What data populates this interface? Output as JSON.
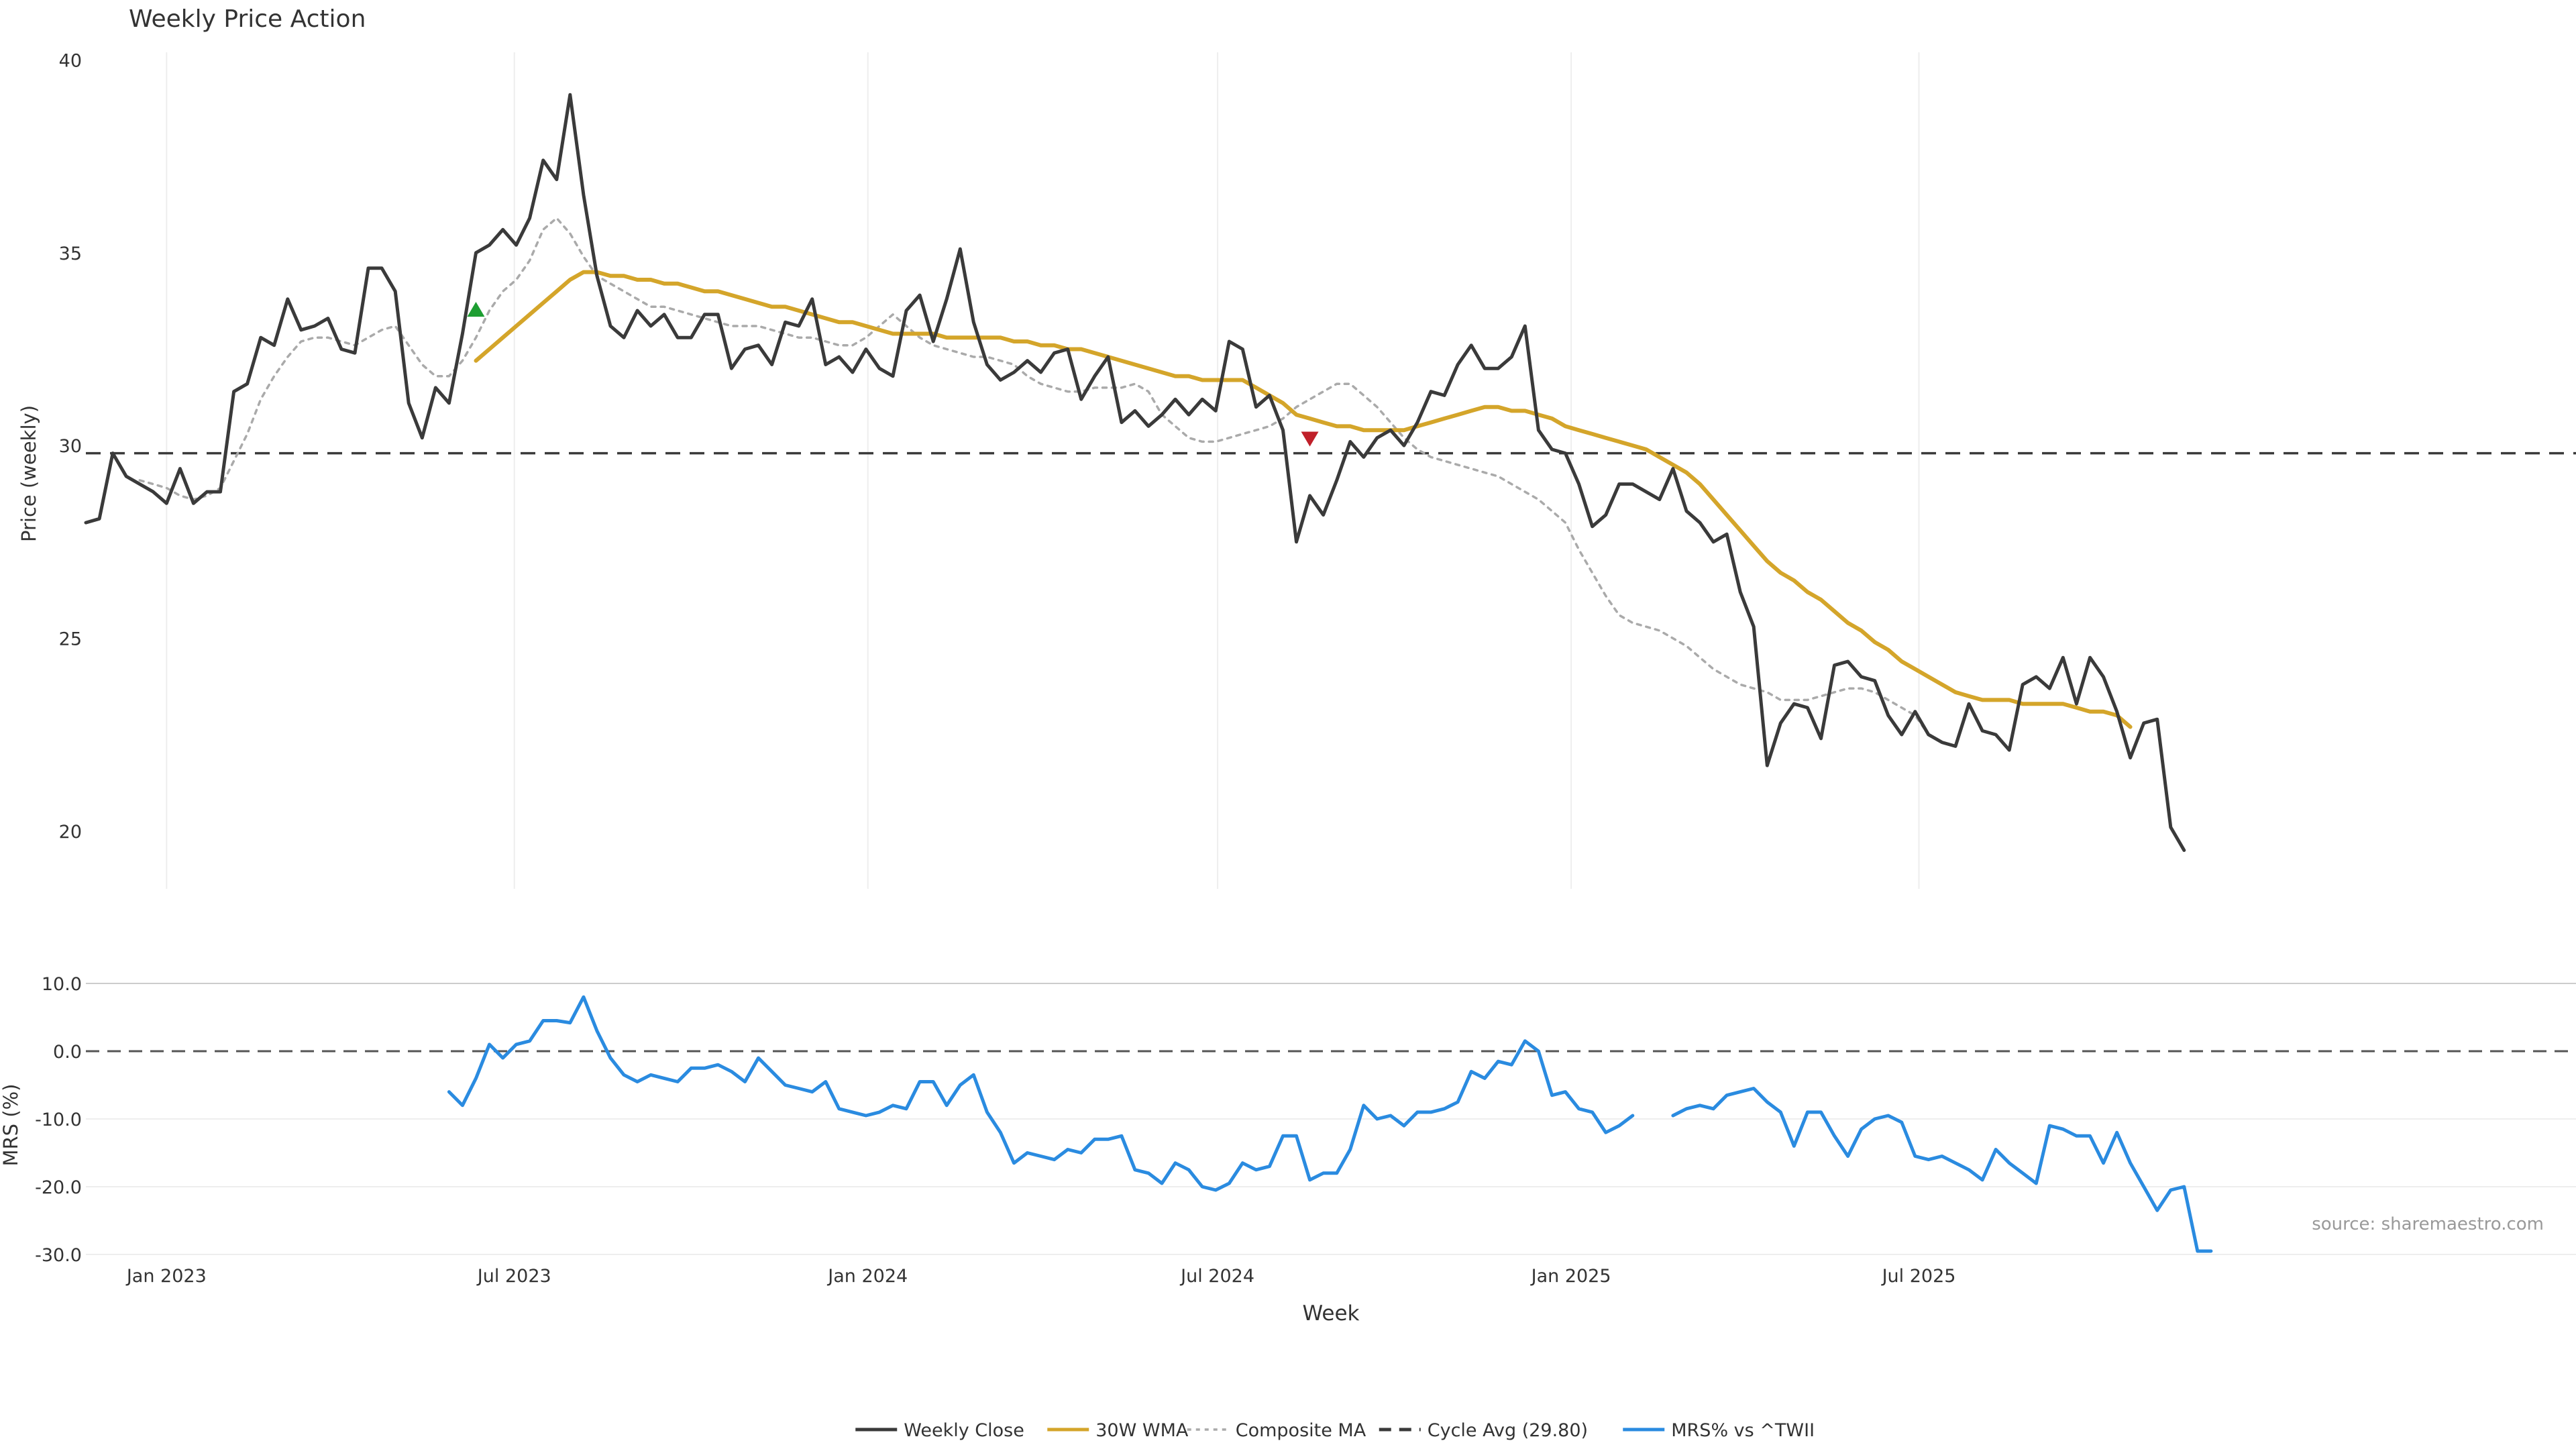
{
  "title": "Weekly Price Action",
  "source_note": "source: sharemaestro.com",
  "xlabel": "Week",
  "legend": [
    {
      "label": "Weekly Close",
      "style": "solid",
      "color": "#3a3a3a"
    },
    {
      "label": "30W WMA",
      "style": "solid",
      "color": "#d4a52a"
    },
    {
      "label": "Composite MA",
      "style": "dotted",
      "color": "#aaaaaa"
    },
    {
      "label": "Cycle Avg (29.80)",
      "style": "dashed",
      "color": "#3a3a3a"
    },
    {
      "label": "MRS% vs ^TWII",
      "style": "solid",
      "color": "#2a8be0"
    }
  ],
  "chart_data": [
    {
      "type": "line",
      "title": "Weekly Price Action",
      "ylabel": "Price (weekly)",
      "ylim": [
        18.5,
        40.2
      ],
      "yticks": [
        20,
        25,
        30,
        35,
        40
      ],
      "x_start": "2022-11-20",
      "x_step_days": 7,
      "x_ticks": [
        {
          "date": "2023-01-01",
          "label": "Jan 2023"
        },
        {
          "date": "2023-07-01",
          "label": "Jul 2023"
        },
        {
          "date": "2024-01-01",
          "label": "Jan 2024"
        },
        {
          "date": "2024-07-01",
          "label": "Jul 2024"
        },
        {
          "date": "2025-01-01",
          "label": "Jan 2025"
        },
        {
          "date": "2025-07-01",
          "label": "Jul 2025"
        }
      ],
      "cycle_avg": 29.8,
      "signals": [
        {
          "type": "buy",
          "date": "2023-06-11",
          "value": 33.5,
          "color": "#1e9e32"
        },
        {
          "type": "sell",
          "date": "2024-08-18",
          "value": 30.2,
          "color": "#c0202a"
        }
      ],
      "series": [
        {
          "name": "Weekly Close",
          "color": "#3a3a3a",
          "values": [
            28.0,
            28.1,
            29.8,
            29.2,
            29.0,
            28.8,
            28.5,
            29.4,
            28.5,
            28.8,
            28.8,
            31.4,
            31.6,
            32.8,
            32.6,
            33.8,
            33.0,
            33.1,
            33.3,
            32.5,
            32.4,
            34.6,
            34.6,
            34.0,
            31.1,
            30.2,
            31.5,
            31.1,
            32.9,
            35.0,
            35.2,
            35.6,
            35.2,
            35.9,
            37.4,
            36.9,
            39.1,
            36.5,
            34.4,
            33.1,
            32.8,
            33.5,
            33.1,
            33.4,
            32.8,
            32.8,
            33.4,
            33.4,
            32.0,
            32.5,
            32.6,
            32.1,
            33.2,
            33.1,
            33.8,
            32.1,
            32.3,
            31.9,
            32.5,
            32.0,
            31.8,
            33.5,
            33.9,
            32.7,
            33.8,
            35.1,
            33.2,
            32.1,
            31.7,
            31.9,
            32.2,
            31.9,
            32.4,
            32.5,
            31.2,
            31.8,
            32.3,
            30.6,
            30.9,
            30.5,
            30.8,
            31.2,
            30.8,
            31.2,
            30.9,
            32.7,
            32.5,
            31.0,
            31.3,
            30.4,
            27.5,
            28.7,
            28.2,
            29.1,
            30.1,
            29.7,
            30.2,
            30.4,
            30.0,
            30.6,
            31.4,
            31.3,
            32.1,
            32.6,
            32.0,
            32.0,
            32.3,
            33.1,
            30.4,
            29.9,
            29.8,
            29.0,
            27.9,
            28.2,
            29.0,
            29.0,
            28.8,
            28.6,
            29.4,
            28.3,
            28.0,
            27.5,
            27.7,
            26.2,
            25.3,
            21.7,
            22.8,
            23.3,
            23.2,
            22.4,
            24.3,
            24.4,
            24.0,
            23.9,
            23.0,
            22.5,
            23.1,
            22.5,
            22.3,
            22.2,
            23.3,
            22.6,
            22.5,
            22.1,
            23.8,
            24.0,
            23.7,
            24.5,
            23.3,
            24.5,
            24.0,
            23.1,
            21.9,
            22.8,
            22.9,
            20.1,
            19.5
          ]
        },
        {
          "name": "30W WMA",
          "color": "#d4a52a",
          "start_index": 29,
          "values": [
            32.2,
            32.5,
            32.8,
            33.1,
            33.4,
            33.7,
            34.0,
            34.3,
            34.5,
            34.5,
            34.4,
            34.4,
            34.3,
            34.3,
            34.2,
            34.2,
            34.1,
            34.0,
            34.0,
            33.9,
            33.8,
            33.7,
            33.6,
            33.6,
            33.5,
            33.4,
            33.3,
            33.2,
            33.2,
            33.1,
            33.0,
            32.9,
            32.9,
            32.9,
            32.9,
            32.8,
            32.8,
            32.8,
            32.8,
            32.8,
            32.7,
            32.7,
            32.6,
            32.6,
            32.5,
            32.5,
            32.4,
            32.3,
            32.2,
            32.1,
            32.0,
            31.9,
            31.8,
            31.8,
            31.7,
            31.7,
            31.7,
            31.7,
            31.5,
            31.3,
            31.1,
            30.8,
            30.7,
            30.6,
            30.5,
            30.5,
            30.4,
            30.4,
            30.4,
            30.4,
            30.5,
            30.6,
            30.7,
            30.8,
            30.9,
            31.0,
            31.0,
            30.9,
            30.9,
            30.8,
            30.7,
            30.5,
            30.4,
            30.3,
            30.2,
            30.1,
            30.0,
            29.9,
            29.7,
            29.5,
            29.3,
            29.0,
            28.6,
            28.2,
            27.8,
            27.4,
            27.0,
            26.7,
            26.5,
            26.2,
            26.0,
            25.7,
            25.4,
            25.2,
            24.9,
            24.7,
            24.4,
            24.2,
            24.0,
            23.8,
            23.6,
            23.5,
            23.4,
            23.4,
            23.4,
            23.3,
            23.3,
            23.3,
            23.3,
            23.2,
            23.1,
            23.1,
            23.0,
            22.7
          ]
        },
        {
          "name": "Composite MA",
          "color": "#aaaaaa",
          "dash": "dotted",
          "start_index": 4,
          "values": [
            29.1,
            29.0,
            28.9,
            28.7,
            28.6,
            28.7,
            28.9,
            29.6,
            30.3,
            31.2,
            31.8,
            32.3,
            32.7,
            32.8,
            32.8,
            32.7,
            32.6,
            32.8,
            33.0,
            33.1,
            32.6,
            32.1,
            31.8,
            31.8,
            32.2,
            32.8,
            33.5,
            34.0,
            34.3,
            34.8,
            35.6,
            35.9,
            35.5,
            34.9,
            34.4,
            34.2,
            34.0,
            33.8,
            33.6,
            33.6,
            33.5,
            33.4,
            33.3,
            33.2,
            33.1,
            33.1,
            33.1,
            33.0,
            32.9,
            32.8,
            32.8,
            32.7,
            32.6,
            32.6,
            32.8,
            33.1,
            33.4,
            33.1,
            32.8,
            32.6,
            32.5,
            32.4,
            32.3,
            32.3,
            32.2,
            32.1,
            31.8,
            31.6,
            31.5,
            31.4,
            31.4,
            31.5,
            31.5,
            31.5,
            31.6,
            31.4,
            30.8,
            30.5,
            30.2,
            30.1,
            30.1,
            30.2,
            30.3,
            30.4,
            30.5,
            30.7,
            31.0,
            31.2,
            31.4,
            31.6,
            31.6,
            31.3,
            31.0,
            30.6,
            30.2,
            29.9,
            29.7,
            29.6,
            29.5,
            29.4,
            29.3,
            29.2,
            29.0,
            28.8,
            28.6,
            28.3,
            28.0,
            27.3,
            26.7,
            26.1,
            25.6,
            25.4,
            25.3,
            25.2,
            25.0,
            24.8,
            24.5,
            24.2,
            24.0,
            23.8,
            23.7,
            23.6,
            23.4,
            23.4,
            23.4,
            23.5,
            23.6,
            23.7,
            23.7,
            23.6,
            23.4,
            23.2,
            23.0,
            22.5,
            22.3
          ]
        }
      ]
    },
    {
      "type": "line",
      "ylabel": "MRS (%)",
      "ylim": [
        -30,
        10
      ],
      "yticks": [
        10,
        0,
        -10,
        -20,
        -30
      ],
      "ytick_labels": [
        "10.0",
        "0.0",
        "-10.0",
        "-20.0",
        "-30.0"
      ],
      "zero_line": 0,
      "series": [
        {
          "name": "MRS% vs ^TWII",
          "color": "#2a8be0",
          "start_index": 27,
          "gap_after_index": 110,
          "values": [
            -6.0,
            -8.0,
            -4.0,
            1.0,
            -1.0,
            1.0,
            1.5,
            4.5,
            4.5,
            4.2,
            8.0,
            3.0,
            -1.0,
            -3.5,
            -4.5,
            -3.5,
            -4.0,
            -4.5,
            -2.5,
            -2.5,
            -2.0,
            -3.0,
            -4.5,
            -1.0,
            -3.0,
            -5.0,
            -5.5,
            -6.0,
            -4.5,
            -8.5,
            -9.0,
            -9.5,
            -9.0,
            -8.0,
            -8.5,
            -4.5,
            -4.5,
            -8.0,
            -5.0,
            -3.5,
            -9.0,
            -12.0,
            -16.5,
            -15.0,
            -15.5,
            -16.0,
            -14.5,
            -15.0,
            -13.0,
            -13.0,
            -12.5,
            -17.5,
            -18.0,
            -19.5,
            -16.5,
            -17.5,
            -20.0,
            -20.5,
            -19.5,
            -16.5,
            -17.5,
            -17.0,
            -12.5,
            -12.5,
            -19.0,
            -18.0,
            -18.0,
            -14.5,
            -8.0,
            -10.0,
            -9.5,
            -11.0,
            -9.0,
            -9.0,
            -8.5,
            -7.5,
            -3.0,
            -4.0,
            -1.5,
            -2.0,
            1.5,
            0.0,
            -6.5,
            -6.0,
            -8.5,
            -9.0,
            -12.0,
            -11.0,
            -9.5,
            null,
            null,
            -9.5,
            -8.5,
            -8.0,
            -8.5,
            -6.5,
            -6.0,
            -5.5,
            -7.5,
            -9.0,
            -14.0,
            -9.0,
            -9.0,
            -12.5,
            -15.5,
            -11.5,
            -10.0,
            -9.5,
            -10.5,
            -15.5,
            -16.0,
            -15.5,
            -16.5,
            -17.5,
            -19.0,
            -14.5,
            -16.5,
            -18.0,
            -19.5,
            -11.0,
            -11.5,
            -12.5,
            -12.5,
            -16.5,
            -12.0,
            -16.5,
            -20.0,
            -23.5,
            -20.5,
            -20.0,
            -29.5,
            -29.5
          ]
        }
      ]
    }
  ]
}
